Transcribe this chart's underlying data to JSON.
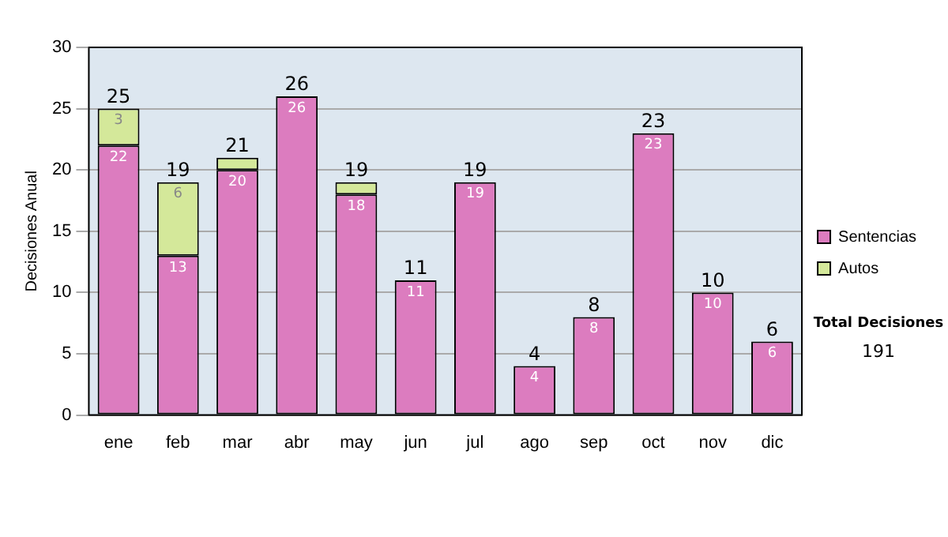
{
  "chart_data": {
    "type": "bar",
    "stacked": true,
    "ylabel": "Decisiones Anual",
    "categories": [
      "ene",
      "feb",
      "mar",
      "abr",
      "may",
      "jun",
      "jul",
      "ago",
      "sep",
      "oct",
      "nov",
      "dic"
    ],
    "series": [
      {
        "name": "Sentencias",
        "color": "#dc7cbf",
        "values": [
          22,
          13,
          20,
          26,
          18,
          11,
          19,
          4,
          8,
          23,
          10,
          6
        ],
        "value_labels": [
          "22",
          "13",
          "20",
          "26",
          "18",
          "11",
          "19",
          "4",
          "8",
          "23",
          "10",
          "6"
        ]
      },
      {
        "name": "Autos",
        "color": "#d4e89a",
        "values": [
          3,
          6,
          1,
          0,
          1,
          0,
          0,
          0,
          0,
          0,
          0,
          0
        ],
        "value_labels": [
          "3",
          "6",
          null,
          null,
          null,
          null,
          null,
          null,
          null,
          null,
          null,
          null
        ]
      }
    ],
    "totals": [
      "25",
      "19",
      "21",
      "26",
      "19",
      "11",
      "19",
      "4",
      "8",
      "23",
      "10",
      "6"
    ],
    "ylim": [
      0,
      30
    ],
    "yticks": [
      0,
      5,
      10,
      15,
      20,
      25,
      30
    ],
    "grid": "y",
    "legend": "right",
    "annotations": [
      "Total Decisiones",
      "191"
    ]
  }
}
